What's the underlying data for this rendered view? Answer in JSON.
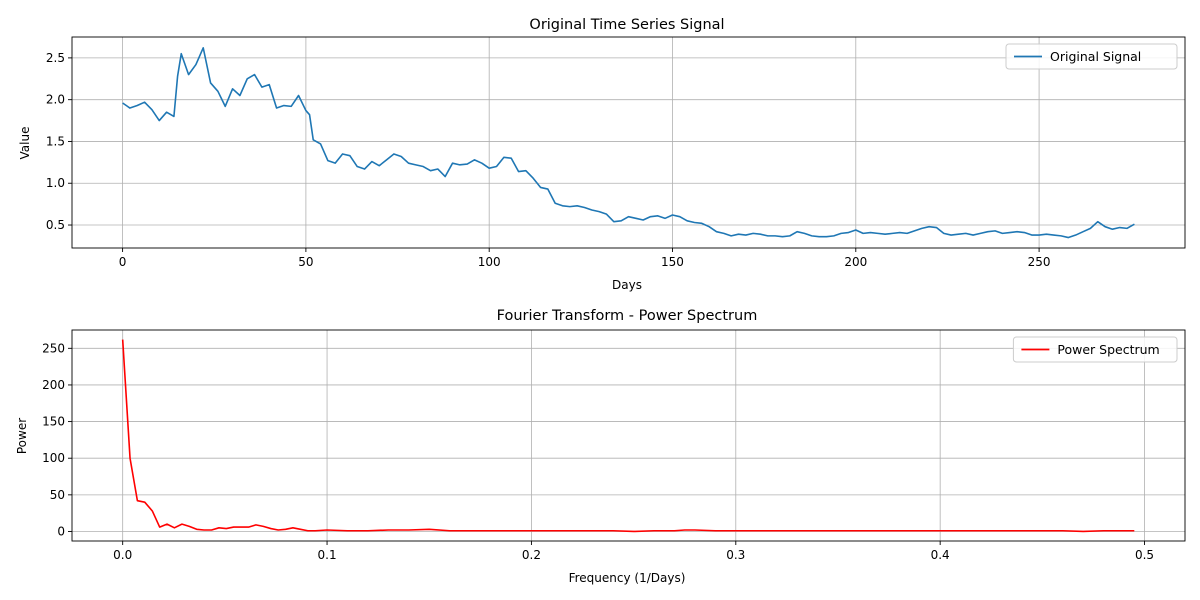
{
  "chart_data": [
    {
      "type": "line",
      "title": "Original Time Series Signal",
      "xlabel": "Days",
      "ylabel": "Value",
      "xlim": [
        -13.8,
        289.8
      ],
      "ylim": [
        0.225,
        2.75
      ],
      "xticks": [
        0,
        50,
        100,
        150,
        200,
        250
      ],
      "yticks": [
        0.5,
        1.0,
        1.5,
        2.0,
        2.5
      ],
      "ytick_labels": [
        "0.5",
        "1.0",
        "1.5",
        "2.0",
        "2.5"
      ],
      "grid": true,
      "legend": "top-right",
      "series": [
        {
          "name": "Original Signal",
          "color": "#1f77b4",
          "x": [
            0,
            2,
            4,
            6,
            8,
            10,
            12,
            14,
            15,
            16,
            18,
            20,
            22,
            24,
            26,
            28,
            30,
            32,
            34,
            36,
            38,
            40,
            42,
            44,
            46,
            48,
            50,
            51,
            52,
            54,
            56,
            58,
            60,
            62,
            64,
            66,
            68,
            70,
            72,
            74,
            76,
            78,
            80,
            82,
            84,
            86,
            88,
            90,
            92,
            94,
            96,
            98,
            100,
            102,
            104,
            106,
            108,
            110,
            112,
            114,
            116,
            118,
            120,
            122,
            124,
            126,
            128,
            130,
            132,
            134,
            136,
            138,
            140,
            142,
            144,
            146,
            148,
            150,
            152,
            154,
            156,
            158,
            160,
            162,
            164,
            166,
            168,
            170,
            172,
            174,
            176,
            178,
            180,
            182,
            184,
            186,
            188,
            190,
            192,
            194,
            196,
            198,
            200,
            202,
            204,
            206,
            208,
            210,
            212,
            214,
            216,
            218,
            220,
            222,
            224,
            226,
            228,
            230,
            232,
            234,
            236,
            238,
            240,
            242,
            244,
            246,
            248,
            250,
            252,
            254,
            256,
            258,
            260,
            262,
            264,
            266,
            268,
            270,
            272,
            274,
            276
          ],
          "y": [
            1.96,
            1.9,
            1.93,
            1.97,
            1.88,
            1.75,
            1.85,
            1.8,
            2.28,
            2.55,
            2.3,
            2.42,
            2.62,
            2.2,
            2.1,
            1.92,
            2.13,
            2.05,
            2.25,
            2.3,
            2.15,
            2.18,
            1.9,
            1.93,
            1.92,
            2.05,
            1.87,
            1.82,
            1.52,
            1.47,
            1.27,
            1.24,
            1.35,
            1.33,
            1.2,
            1.17,
            1.26,
            1.21,
            1.28,
            1.35,
            1.32,
            1.24,
            1.22,
            1.2,
            1.15,
            1.17,
            1.08,
            1.24,
            1.22,
            1.23,
            1.28,
            1.24,
            1.18,
            1.2,
            1.31,
            1.3,
            1.14,
            1.15,
            1.06,
            0.95,
            0.93,
            0.76,
            0.73,
            0.72,
            0.73,
            0.71,
            0.68,
            0.66,
            0.63,
            0.54,
            0.55,
            0.6,
            0.58,
            0.56,
            0.6,
            0.61,
            0.58,
            0.62,
            0.6,
            0.55,
            0.53,
            0.52,
            0.48,
            0.42,
            0.4,
            0.37,
            0.39,
            0.38,
            0.4,
            0.39,
            0.37,
            0.37,
            0.36,
            0.37,
            0.42,
            0.4,
            0.37,
            0.36,
            0.36,
            0.37,
            0.4,
            0.41,
            0.44,
            0.4,
            0.41,
            0.4,
            0.39,
            0.4,
            0.41,
            0.4,
            0.43,
            0.46,
            0.48,
            0.47,
            0.4,
            0.38,
            0.39,
            0.4,
            0.38,
            0.4,
            0.42,
            0.43,
            0.4,
            0.41,
            0.42,
            0.41,
            0.38,
            0.38,
            0.39,
            0.38,
            0.37,
            0.35,
            0.38,
            0.42,
            0.46,
            0.54,
            0.48,
            0.45,
            0.47,
            0.46,
            0.51
          ]
        }
      ]
    },
    {
      "type": "line",
      "title": "Fourier Transform - Power Spectrum",
      "xlabel": "Frequency (1/Days)",
      "ylabel": "Power",
      "xlim": [
        -0.0248,
        0.5198
      ],
      "ylim": [
        -13.0,
        275.0
      ],
      "xticks": [
        0.0,
        0.1,
        0.2,
        0.3,
        0.4,
        0.5
      ],
      "xtick_labels": [
        "0.0",
        "0.1",
        "0.2",
        "0.3",
        "0.4",
        "0.5"
      ],
      "yticks": [
        0,
        50,
        100,
        150,
        200,
        250
      ],
      "grid": true,
      "legend": "top-right",
      "series": [
        {
          "name": "Power Spectrum",
          "color": "#ff0000",
          "x": [
            0.0,
            0.0036,
            0.0072,
            0.0108,
            0.0145,
            0.0181,
            0.0217,
            0.0253,
            0.029,
            0.0326,
            0.0362,
            0.0398,
            0.0435,
            0.0471,
            0.0507,
            0.0543,
            0.058,
            0.0616,
            0.0652,
            0.0688,
            0.0725,
            0.0761,
            0.0797,
            0.0833,
            0.087,
            0.0906,
            0.0942,
            0.1,
            0.11,
            0.12,
            0.13,
            0.14,
            0.15,
            0.16,
            0.17,
            0.18,
            0.19,
            0.2,
            0.21,
            0.22,
            0.23,
            0.24,
            0.25,
            0.26,
            0.27,
            0.275,
            0.28,
            0.29,
            0.3,
            0.31,
            0.32,
            0.33,
            0.34,
            0.35,
            0.36,
            0.37,
            0.38,
            0.39,
            0.4,
            0.41,
            0.42,
            0.43,
            0.44,
            0.45,
            0.46,
            0.47,
            0.48,
            0.49,
            0.495
          ],
          "y": [
            262,
            100,
            42,
            40,
            28,
            6,
            10,
            5,
            10,
            7,
            3,
            2,
            2,
            5,
            4,
            6,
            6,
            6,
            9,
            7,
            4,
            2,
            3,
            5,
            3,
            1,
            1,
            2,
            1,
            1,
            2,
            2,
            3,
            1,
            1,
            1,
            1,
            1,
            1,
            1,
            1,
            1,
            0,
            1,
            1,
            2,
            2,
            1,
            1,
            1,
            1,
            1,
            1,
            1,
            1,
            1,
            1,
            1,
            1,
            1,
            1,
            1,
            1,
            1,
            1,
            0,
            1,
            1,
            1
          ]
        }
      ]
    }
  ]
}
